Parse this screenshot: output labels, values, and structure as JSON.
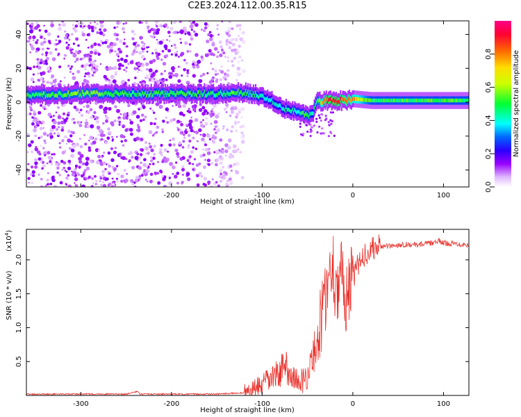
{
  "title": "C2E3.2024.112.00.35.R15",
  "chart_data": [
    {
      "type": "heatmap",
      "xlabel": "Height of straight line (km)",
      "ylabel": "Frequency (Hz)",
      "xlim": [
        -360,
        128
      ],
      "ylim": [
        -50,
        48
      ],
      "x_ticks": [
        -300,
        -200,
        -100,
        0,
        100
      ],
      "x_tick_labels": [
        "-300",
        "-200",
        "-100",
        "0",
        "100"
      ],
      "y_ticks": [
        -40,
        -20,
        0,
        20,
        40
      ],
      "y_tick_labels": [
        "-40",
        "-20",
        "0",
        "20",
        "40"
      ],
      "colorbar": {
        "label": "Normalized spectral amplitude",
        "range": [
          0,
          1
        ],
        "ticks": [
          0.0,
          0.2,
          0.4,
          0.6,
          0.8
        ],
        "tick_labels": [
          "0.0",
          "0.2",
          "0.4",
          "0.6",
          "0.8"
        ],
        "colors": [
          "#ffffff",
          "#9900ff",
          "#0000ff",
          "#00ffff",
          "#00ff00",
          "#ffff00",
          "#ff8800",
          "#ff0000",
          "#ff00aa"
        ]
      },
      "ridge": {
        "x": [
          -360,
          -300,
          -250,
          -200,
          -150,
          -130,
          -110,
          -90,
          -75,
          -60,
          -50,
          -45,
          -40,
          -30,
          -20,
          -10,
          0,
          20,
          50,
          100,
          128
        ],
        "frequency": [
          4,
          5,
          5,
          5,
          5,
          6,
          5,
          1,
          -4,
          -6,
          -8,
          -6,
          0,
          1,
          1,
          1,
          2,
          1,
          1,
          1,
          1
        ],
        "amplitude": [
          0.5,
          0.55,
          0.5,
          0.5,
          0.45,
          0.5,
          0.45,
          0.4,
          0.4,
          0.45,
          0.5,
          0.4,
          0.5,
          0.85,
          0.9,
          0.8,
          0.75,
          0.5,
          0.5,
          0.5,
          0.5
        ]
      },
      "background_noise_region": [
        -360,
        -120
      ]
    },
    {
      "type": "line",
      "xlabel": "Height of straight line (km)",
      "ylabel": "SNR (10 * v/v)",
      "scale_label": "(x10",
      "scale_exponent": "4",
      "xlim": [
        -360,
        128
      ],
      "ylim": [
        0,
        2.45
      ],
      "x_ticks": [
        -300,
        -200,
        -100,
        0,
        100
      ],
      "x_tick_labels": [
        "-300",
        "-200",
        "-100",
        "0",
        "100"
      ],
      "y_ticks": [
        0.5,
        1.0,
        1.5,
        2.0
      ],
      "y_tick_labels": [
        "0.5",
        "1.0",
        "1.5",
        "2.0"
      ],
      "color": "#e8302a",
      "series": [
        {
          "x": [
            -360,
            -300,
            -250,
            -237,
            -235,
            -200,
            -150,
            -120,
            -110,
            -100,
            -90,
            -80,
            -75,
            -70,
            -65,
            -60,
            -55,
            -50,
            -45,
            -40,
            -35,
            -30,
            -25,
            -22,
            -20,
            -15,
            -12,
            -10,
            -5,
            0,
            5,
            10,
            15,
            20,
            25,
            30,
            40,
            50,
            60,
            70,
            80,
            90,
            95,
            100,
            110,
            120,
            128
          ],
          "y": [
            0.02,
            0.02,
            0.02,
            0.06,
            0.02,
            0.02,
            0.02,
            0.04,
            0.08,
            0.15,
            0.25,
            0.35,
            0.45,
            0.35,
            0.25,
            0.2,
            0.22,
            0.3,
            0.5,
            0.8,
            1.1,
            1.5,
            1.8,
            2.0,
            1.7,
            1.6,
            1.8,
            1.4,
            1.6,
            1.7,
            1.9,
            2.05,
            2.1,
            2.15,
            2.18,
            2.2,
            2.2,
            2.22,
            2.23,
            2.22,
            2.24,
            2.25,
            2.28,
            2.25,
            2.24,
            2.23,
            2.22
          ]
        }
      ]
    }
  ]
}
